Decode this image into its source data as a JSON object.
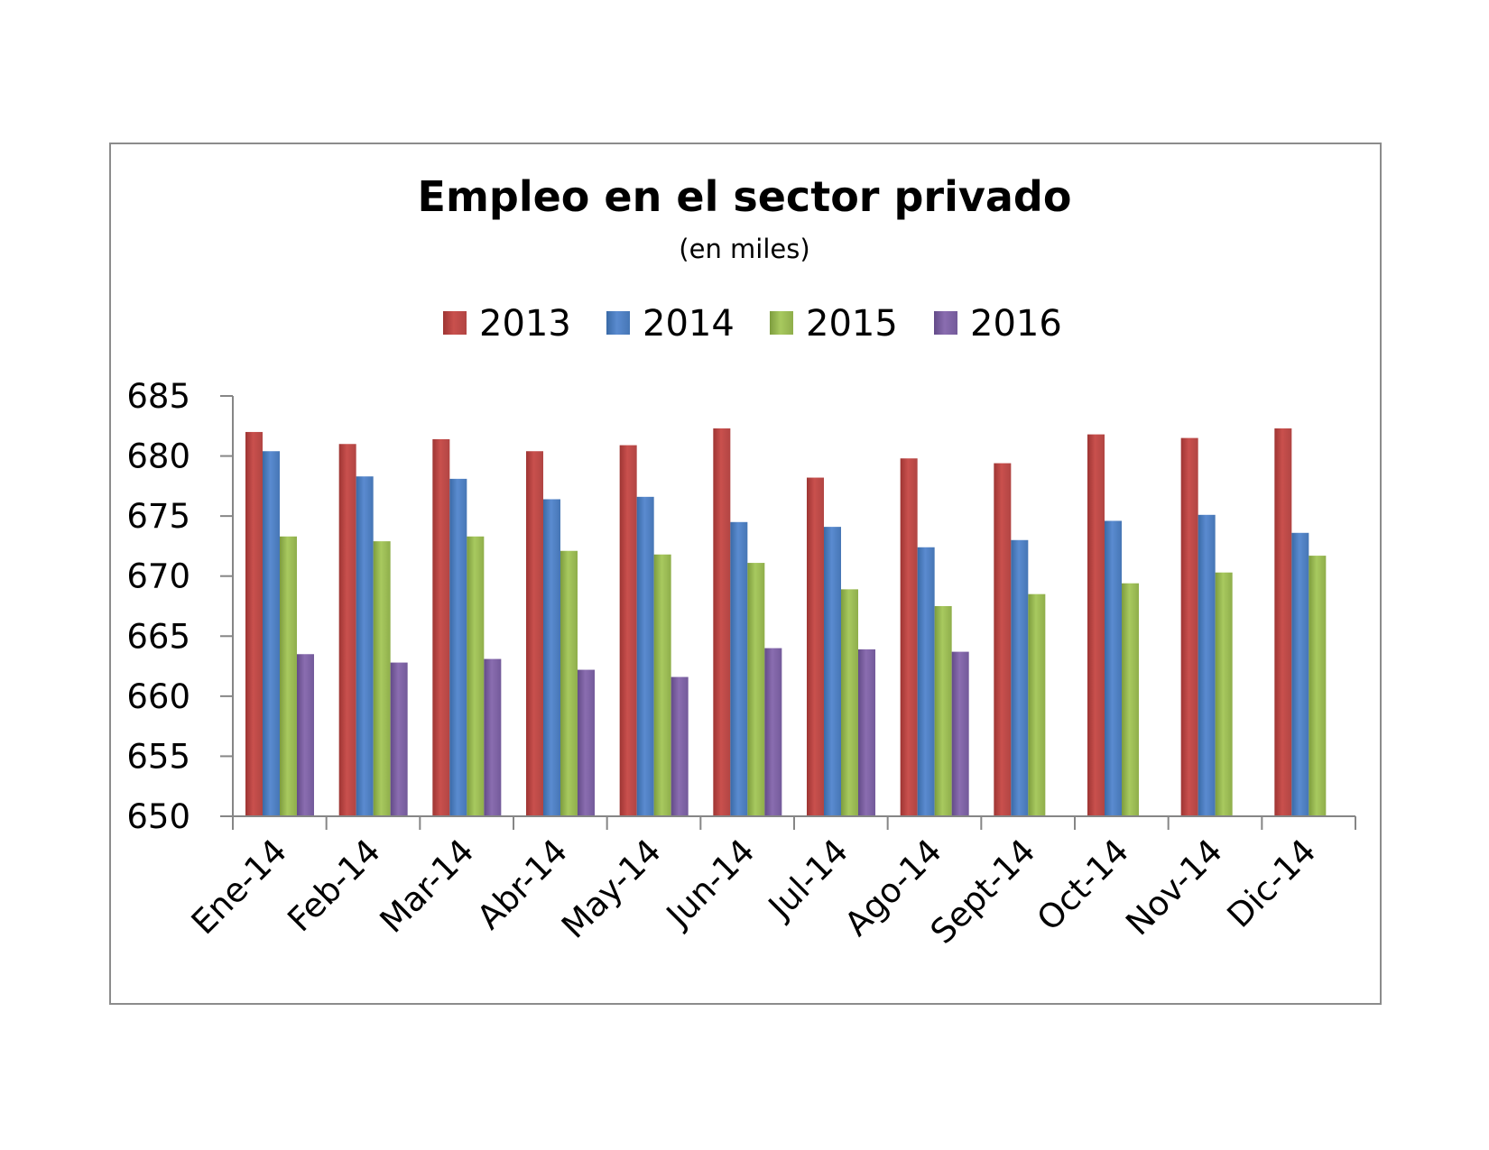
{
  "chart_data": {
    "type": "bar",
    "title": "Empleo en el sector privado",
    "subtitle": "(en miles)",
    "xlabel": "",
    "ylabel": "",
    "ylim": [
      650,
      685
    ],
    "yticks": [
      650,
      655,
      660,
      665,
      670,
      675,
      680,
      685
    ],
    "grid": false,
    "legend_position": "top",
    "categories": [
      "Ene-14",
      "Feb-14",
      "Mar-14",
      "Abr-14",
      "May-14",
      "Jun-14",
      "Jul-14",
      "Ago-14",
      "Sept-14",
      "Oct-14",
      "Nov-14",
      "Dic-14"
    ],
    "series": [
      {
        "name": "2013",
        "color": "#c0504d",
        "values": [
          682.0,
          681.0,
          681.4,
          680.4,
          680.9,
          682.3,
          678.2,
          679.8,
          679.4,
          681.8,
          681.5,
          682.3
        ]
      },
      {
        "name": "2014",
        "color": "#4f81bd",
        "values": [
          680.4,
          678.3,
          678.1,
          676.4,
          676.6,
          674.5,
          674.1,
          672.4,
          673.0,
          674.6,
          675.1,
          673.6
        ]
      },
      {
        "name": "2015",
        "color": "#9bbb59",
        "values": [
          673.3,
          672.9,
          673.3,
          672.1,
          671.8,
          671.1,
          668.9,
          667.5,
          668.5,
          669.4,
          670.3,
          671.7
        ]
      },
      {
        "name": "2016",
        "color": "#8064a2",
        "values": [
          663.5,
          662.8,
          663.1,
          662.2,
          661.6,
          664.0,
          663.9,
          663.7,
          null,
          null,
          null,
          null
        ]
      }
    ]
  }
}
